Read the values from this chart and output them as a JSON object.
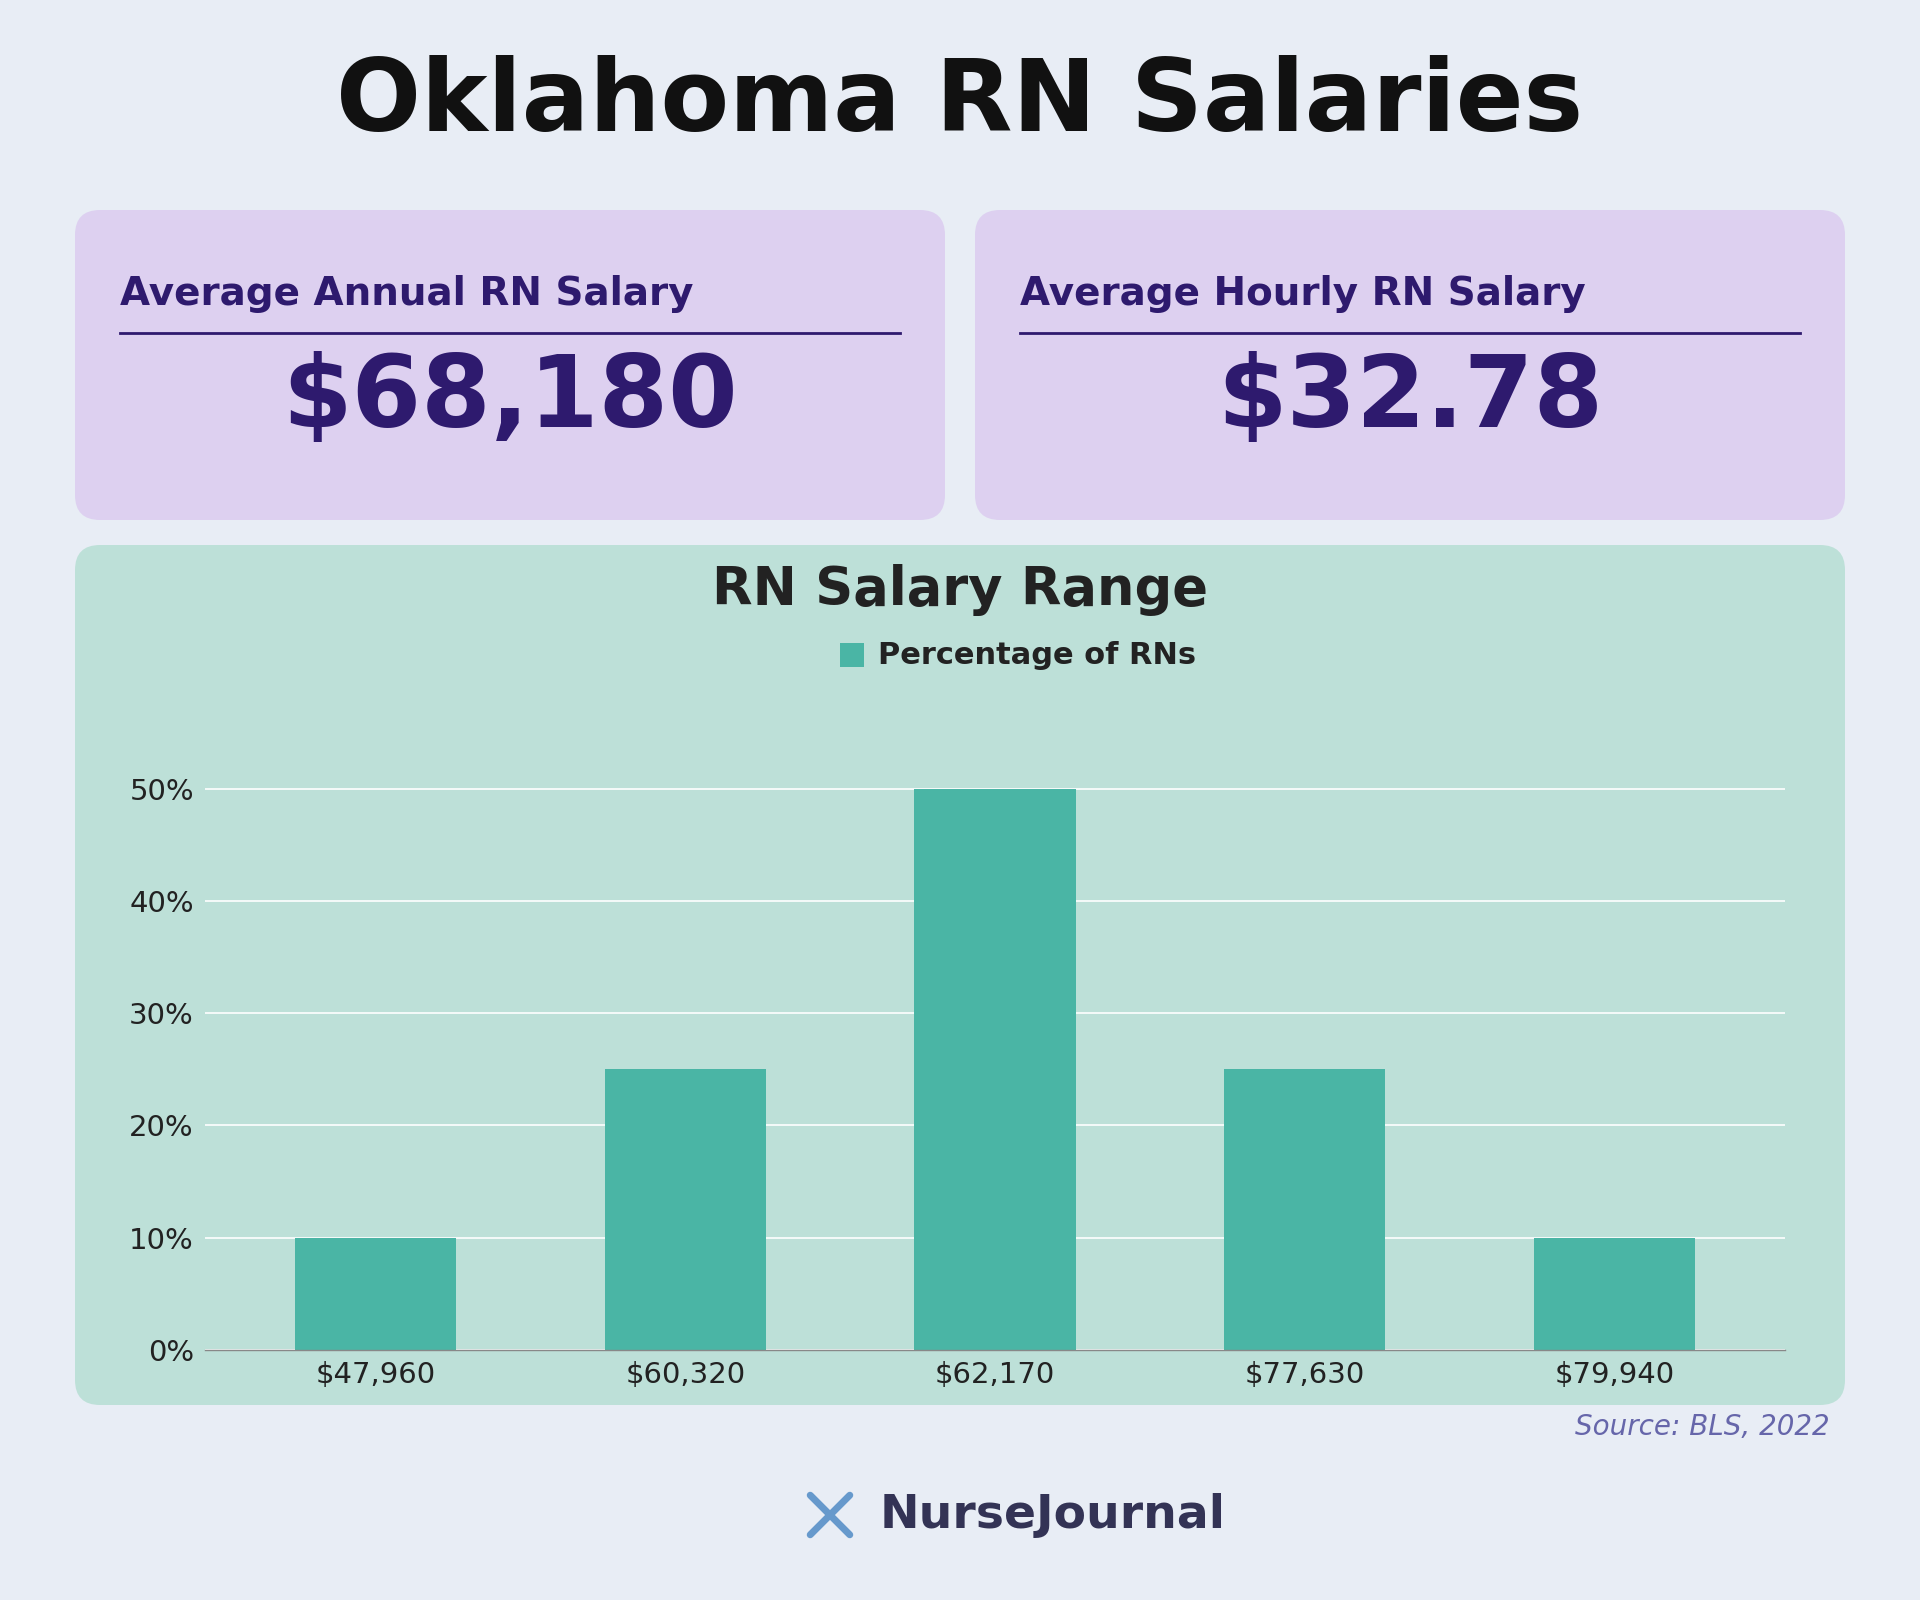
{
  "title": "Oklahoma RN Salaries",
  "title_fontsize": 72,
  "title_color": "#111111",
  "title_fontweight": "bold",
  "bg_color": "#e8edf5",
  "card_bg_color": "#ddd0f0",
  "chart_bg_color": "#bde0d8",
  "card1_label": "Average Annual RN Salary",
  "card1_value": "$68,180",
  "card2_label": "Average Hourly RN Salary",
  "card2_value": "$32.78",
  "card_label_fontsize": 28,
  "card_value_fontsize": 72,
  "card_text_color": "#2e1a6e",
  "chart_title": "RN Salary Range",
  "chart_title_fontsize": 38,
  "chart_title_color": "#222222",
  "legend_label": "Percentage of RNs",
  "legend_fontsize": 22,
  "bar_color": "#4ab5a5",
  "categories": [
    "$47,960",
    "$60,320",
    "$62,170",
    "$77,630",
    "$79,940"
  ],
  "values": [
    10,
    25,
    50,
    25,
    10
  ],
  "ytick_labels": [
    "0%",
    "10%",
    "20%",
    "30%",
    "40%",
    "50%"
  ],
  "ytick_values": [
    0,
    10,
    20,
    30,
    40,
    50
  ],
  "source_text": "Source: BLS, 2022",
  "source_fontsize": 20,
  "source_color": "#6666aa",
  "nursejournal_text": "NurseJournal",
  "nursejournal_fontsize": 34
}
